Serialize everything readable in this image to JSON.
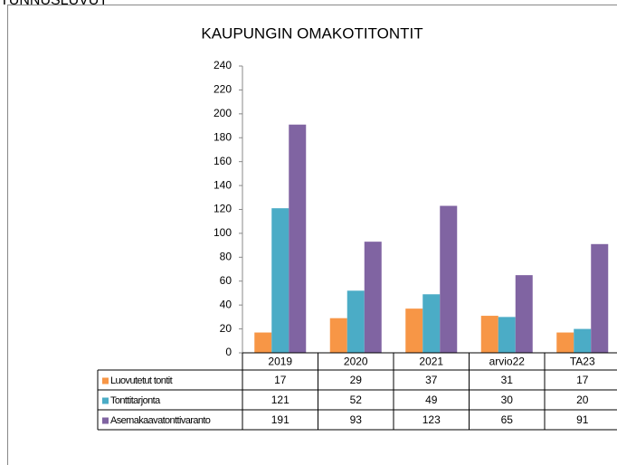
{
  "heading": "TUNNUSLUVUT",
  "chart_data": {
    "type": "bar",
    "title": "KAUPUNGIN OMAKOTITONTIT",
    "categories": [
      "2019",
      "2020",
      "2021",
      "arvio22",
      "TA23"
    ],
    "series": [
      {
        "name": "Luovutetut tontit",
        "color": "#f79646",
        "values": [
          17,
          29,
          37,
          31,
          17
        ]
      },
      {
        "name": "Tonttitarjonta",
        "color": "#4bacc6",
        "values": [
          121,
          52,
          49,
          30,
          20
        ]
      },
      {
        "name": "Asemakaavatonttivaranto",
        "color": "#8064a2",
        "values": [
          191,
          93,
          123,
          65,
          91
        ]
      }
    ],
    "ylim": [
      0,
      240
    ],
    "yticks": [
      0,
      20,
      40,
      60,
      80,
      100,
      120,
      140,
      160,
      180,
      200,
      220,
      240
    ],
    "grid": false
  }
}
